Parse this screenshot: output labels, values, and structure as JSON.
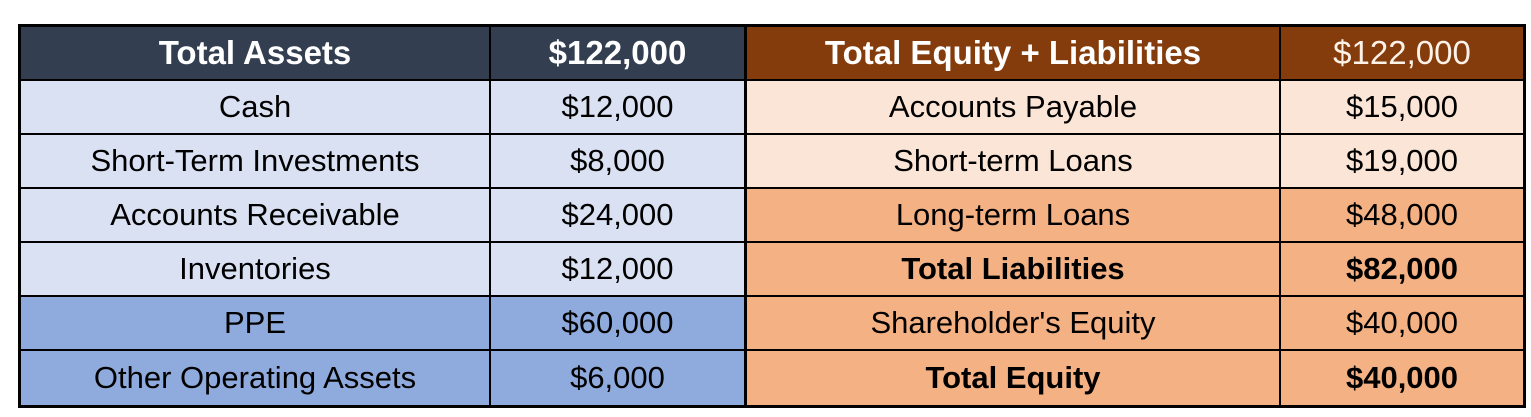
{
  "colors": {
    "page_bg": "#FFFFFF",
    "border": "#000000",
    "body_text": "#000000",
    "header_text": "#FFFFFF",
    "assets_header_bg": "#333F50",
    "assets_light_row_bg": "#D9E1F2",
    "assets_medium_row_bg": "#8FAADC",
    "liabilities_header_bg": "#843C0C",
    "liabilities_header_value_text": "#FCF2E8",
    "liabilities_light_row_bg": "#FBE5D6",
    "liabilities_medium_row_bg": "#F4B183"
  },
  "chart_data": {
    "type": "table",
    "sections": [
      {
        "name": "assets",
        "header": {
          "label": "Total Assets",
          "value": "$122,000"
        },
        "rows": [
          {
            "label": "Cash",
            "value": "$12,000",
            "tone": "light",
            "bold": false
          },
          {
            "label": "Short-Term Investments",
            "value": "$8,000",
            "tone": "light",
            "bold": false
          },
          {
            "label": "Accounts Receivable",
            "value": "$24,000",
            "tone": "light",
            "bold": false
          },
          {
            "label": "Inventories",
            "value": "$12,000",
            "tone": "light",
            "bold": false
          },
          {
            "label": "PPE",
            "value": "$60,000",
            "tone": "medium",
            "bold": false
          },
          {
            "label": "Other Operating Assets",
            "value": "$6,000",
            "tone": "medium",
            "bold": false
          }
        ]
      },
      {
        "name": "equity_liabilities",
        "header": {
          "label": "Total Equity + Liabilities",
          "value": "$122,000"
        },
        "rows": [
          {
            "label": "Accounts Payable",
            "value": "$15,000",
            "tone": "light",
            "bold": false
          },
          {
            "label": "Short-term Loans",
            "value": "$19,000",
            "tone": "light",
            "bold": false
          },
          {
            "label": "Long-term Loans",
            "value": "$48,000",
            "tone": "medium",
            "bold": false
          },
          {
            "label": "Total Liabilities",
            "value": "$82,000",
            "tone": "medium",
            "bold": true
          },
          {
            "label": "Shareholder's Equity",
            "value": "$40,000",
            "tone": "medium",
            "bold": false
          },
          {
            "label": "Total Equity",
            "value": "$40,000",
            "tone": "medium",
            "bold": true
          }
        ]
      }
    ]
  }
}
